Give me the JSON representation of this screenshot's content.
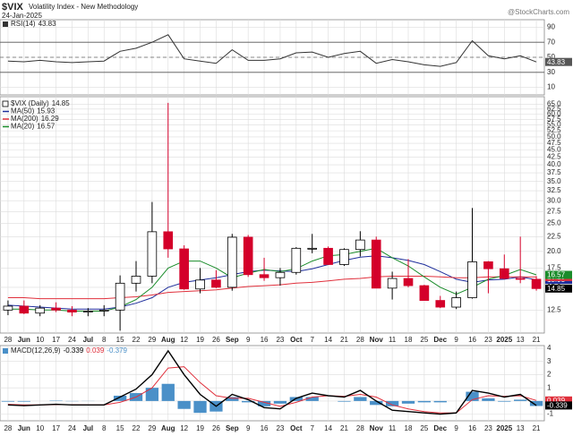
{
  "header": {
    "symbol": "$VIX",
    "description": "Volatility Index - New Methodology",
    "date": "24-Jan-2025",
    "credit": "@StockCharts.com"
  },
  "chart_data": [
    {
      "type": "line",
      "series": [
        {
          "name": "RSI(14)",
          "color": "#333333",
          "values": [
            45,
            44,
            46,
            44,
            43,
            44,
            45,
            58,
            62,
            70,
            80,
            48,
            45,
            42,
            60,
            46,
            46,
            48,
            56,
            57,
            50,
            55,
            58,
            42,
            47,
            44,
            40,
            38,
            43,
            72,
            52,
            48,
            52,
            43.83
          ]
        }
      ],
      "ylim": [
        0,
        100
      ],
      "yticks": [
        10,
        30,
        50,
        70,
        90
      ],
      "levels": [
        30,
        70
      ],
      "midline": 50,
      "grid": true
    },
    {
      "type": "candlestick",
      "name": "$VIX (Daily)",
      "categories": [
        "28",
        "Jun",
        "10",
        "17",
        "24",
        "Jul",
        "8",
        "15",
        "22",
        "29",
        "Aug",
        "12",
        "19",
        "26",
        "Sep",
        "9",
        "16",
        "23",
        "Oct",
        "7",
        "14",
        "21",
        "28",
        "Nov",
        "11",
        "18",
        "25",
        "Dec",
        "9",
        "16",
        "23",
        "2025",
        "13",
        "21"
      ],
      "open": [
        12.5,
        12.9,
        12.2,
        12.7,
        12.5,
        12.3,
        12.4,
        12.5,
        15.5,
        16.4,
        23.4,
        20.4,
        14.8,
        15.9,
        15.0,
        22.4,
        16.6,
        16.2,
        16.9,
        20.5,
        20.5,
        18.0,
        20.3,
        21.9,
        14.9,
        16.1,
        15.2,
        13.5,
        12.8,
        13.8,
        18.4,
        17.4,
        16.1,
        16.0
      ],
      "high": [
        13.5,
        13.5,
        13.0,
        13.3,
        12.9,
        12.7,
        13.0,
        16.5,
        18.5,
        29.7,
        65.7,
        21.0,
        17.5,
        17.2,
        23.0,
        22.8,
        19.0,
        17.5,
        20.7,
        23.0,
        20.8,
        20.5,
        23.5,
        22.5,
        17.0,
        18.8,
        15.3,
        14.0,
        14.5,
        28.3,
        18.5,
        19.5,
        22.5,
        16.4
      ],
      "low": [
        12.0,
        12.1,
        11.9,
        12.3,
        11.9,
        11.9,
        11.9,
        10.6,
        14.5,
        15.5,
        19.0,
        14.7,
        14.3,
        14.9,
        14.6,
        16.3,
        15.8,
        15.2,
        16.6,
        19.7,
        18.0,
        17.8,
        19.2,
        14.9,
        13.6,
        15.0,
        13.5,
        12.7,
        12.6,
        13.7,
        14.3,
        16.0,
        15.5,
        14.6
      ],
      "close": [
        12.9,
        12.2,
        12.7,
        12.5,
        12.3,
        12.4,
        12.5,
        15.5,
        16.4,
        23.4,
        20.4,
        14.8,
        15.9,
        15.0,
        22.4,
        16.6,
        16.2,
        16.9,
        20.5,
        20.5,
        18.0,
        20.3,
        21.9,
        14.9,
        16.1,
        15.2,
        13.5,
        12.8,
        13.8,
        18.4,
        17.4,
        16.1,
        16.0,
        14.85
      ],
      "up_color": "#000000",
      "down_color": "#d4002a",
      "series": [
        {
          "name": "MA(50)",
          "color": "#1f2f9c",
          "values": [
            13.0,
            12.9,
            12.8,
            12.7,
            12.6,
            12.6,
            12.6,
            12.8,
            13.2,
            13.8,
            15,
            15.6,
            15.9,
            16.2,
            16.6,
            17,
            17.2,
            17.1,
            17.0,
            17.4,
            18.0,
            18.6,
            19.1,
            19.3,
            19.0,
            18.6,
            18.0,
            17.0,
            16.0,
            15.6,
            15.9,
            16.0,
            16.3,
            15.93
          ]
        },
        {
          "name": "MA(200)",
          "color": "#e0303c",
          "values": [
            13.8,
            13.8,
            13.7,
            13.7,
            13.7,
            13.7,
            13.7,
            13.8,
            13.9,
            14.1,
            14.4,
            14.5,
            14.6,
            14.7,
            14.9,
            15.1,
            15.2,
            15.3,
            15.5,
            15.6,
            15.8,
            16.0,
            16.1,
            16.3,
            16.4,
            16.4,
            16.4,
            16.3,
            16.2,
            16.2,
            16.3,
            16.3,
            16.3,
            16.29
          ]
        },
        {
          "name": "MA(20)",
          "color": "#1a8c2a",
          "values": [
            12.6,
            12.6,
            12.5,
            12.5,
            12.4,
            12.4,
            12.4,
            12.8,
            13.6,
            15,
            17.5,
            18.5,
            18.5,
            17.5,
            16.2,
            16.8,
            17.3,
            17.0,
            17.4,
            18.5,
            19.3,
            19.5,
            20.0,
            20.5,
            19.0,
            17.8,
            16.3,
            15.0,
            14.2,
            15.0,
            16.0,
            16.5,
            17.3,
            16.57
          ]
        }
      ],
      "ylim": [
        10.4,
        69
      ],
      "log_scale": true,
      "grid": true,
      "yticks": [
        12.5,
        {
          "value": 15,
          "label": "15.0"
        },
        17.5,
        {
          "value": 20,
          "label": "20.0"
        },
        22.5,
        {
          "value": 25,
          "label": "25.0"
        },
        27.5,
        {
          "value": 30,
          "label": "30.0"
        },
        32.5,
        {
          "value": 35,
          "label": "35.0"
        },
        37.5,
        {
          "value": 40,
          "label": "40.0"
        },
        42.5,
        {
          "value": 45,
          "label": "45.0"
        },
        47.5,
        {
          "value": 50,
          "label": "50.0"
        },
        52.5,
        {
          "value": 55,
          "label": "55.0"
        },
        57.5,
        {
          "value": 60,
          "label": "60.0"
        },
        62.5,
        {
          "value": 65,
          "label": "65.0"
        }
      ]
    },
    {
      "type": "macd",
      "series": [
        {
          "name": "MACD(12,26,9)",
          "color": "#000000",
          "values": [
            -0.3,
            -0.35,
            -0.3,
            -0.25,
            -0.3,
            -0.3,
            -0.3,
            0.3,
            0.9,
            2.0,
            3.8,
            2.0,
            0.5,
            -0.4,
            0.5,
            0.1,
            -0.5,
            -0.6,
            0.2,
            0.6,
            0.4,
            0.3,
            0.8,
            0.0,
            -0.7,
            -0.8,
            -0.9,
            -1.0,
            -0.9,
            0.8,
            0.6,
            0.3,
            0.5,
            -0.339
          ]
        },
        {
          "color": "#e0303c",
          "values": [
            -0.25,
            -0.3,
            -0.3,
            -0.28,
            -0.28,
            -0.29,
            -0.3,
            -0.1,
            0.3,
            1.0,
            2.5,
            2.6,
            1.4,
            0.4,
            0.2,
            0.2,
            -0.1,
            -0.4,
            -0.1,
            0.3,
            0.4,
            0.35,
            0.5,
            0.3,
            -0.3,
            -0.6,
            -0.8,
            -0.9,
            -0.9,
            0.1,
            0.4,
            0.35,
            0.4,
            0.039
          ]
        },
        {
          "color": "#4a90c8",
          "values": [
            -0.05,
            -0.05,
            0,
            0.03,
            -0.02,
            -0.01,
            0,
            0.4,
            0.6,
            1.0,
            1.3,
            -0.6,
            -0.9,
            -0.8,
            0.3,
            -0.1,
            -0.4,
            -0.2,
            0.3,
            0.3,
            0,
            -0.05,
            0.3,
            -0.3,
            -0.4,
            -0.2,
            -0.1,
            -0.1,
            0,
            0.7,
            0.2,
            -0.05,
            0.1,
            -0.379
          ]
        }
      ],
      "ylim": [
        -1.5,
        4.2
      ],
      "yticks": [
        -1,
        0,
        1,
        2,
        3,
        4
      ],
      "grid": true
    }
  ]
}
